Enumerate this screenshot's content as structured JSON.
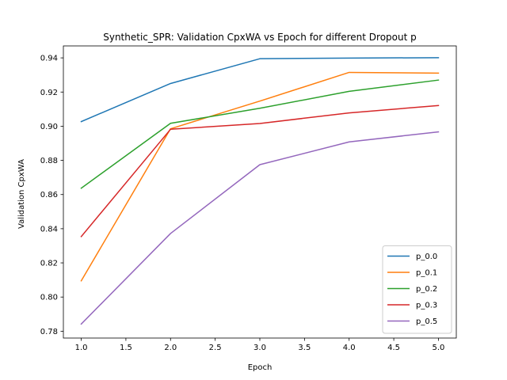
{
  "chart_data": {
    "type": "line",
    "title": "Synthetic_SPR: Validation CpxWA vs Epoch for different Dropout p",
    "xlabel": "Epoch",
    "ylabel": "Validation CpxWA",
    "x": [
      1,
      2,
      3,
      4,
      5
    ],
    "xlim": [
      0.8,
      5.2
    ],
    "ylim": [
      0.776,
      0.947
    ],
    "xticks": [
      1.0,
      1.5,
      2.0,
      2.5,
      3.0,
      3.5,
      4.0,
      4.5,
      5.0
    ],
    "xtick_labels": [
      "1.0",
      "1.5",
      "2.0",
      "2.5",
      "3.0",
      "3.5",
      "4.0",
      "4.5",
      "5.0"
    ],
    "yticks": [
      0.78,
      0.8,
      0.82,
      0.84,
      0.86,
      0.88,
      0.9,
      0.92,
      0.94
    ],
    "ytick_labels": [
      "0.78",
      "0.80",
      "0.82",
      "0.84",
      "0.86",
      "0.88",
      "0.90",
      "0.92",
      "0.94"
    ],
    "grid": false,
    "legend_position": "lower-right",
    "series": [
      {
        "name": "p_0.0",
        "color": "#1f77b4",
        "values": [
          0.9027,
          0.925,
          0.9395,
          0.9399,
          0.9401
        ]
      },
      {
        "name": "p_0.1",
        "color": "#ff7f0e",
        "values": [
          0.8095,
          0.8985,
          0.9147,
          0.9315,
          0.9311
        ]
      },
      {
        "name": "p_0.2",
        "color": "#2ca02c",
        "values": [
          0.8637,
          0.9017,
          0.9105,
          0.9204,
          0.927
        ]
      },
      {
        "name": "p_0.3",
        "color": "#d62728",
        "values": [
          0.8354,
          0.8982,
          0.9016,
          0.9078,
          0.9121
        ]
      },
      {
        "name": "p_0.5",
        "color": "#9467bd",
        "values": [
          0.7842,
          0.8372,
          0.8775,
          0.8908,
          0.8967
        ]
      }
    ]
  }
}
